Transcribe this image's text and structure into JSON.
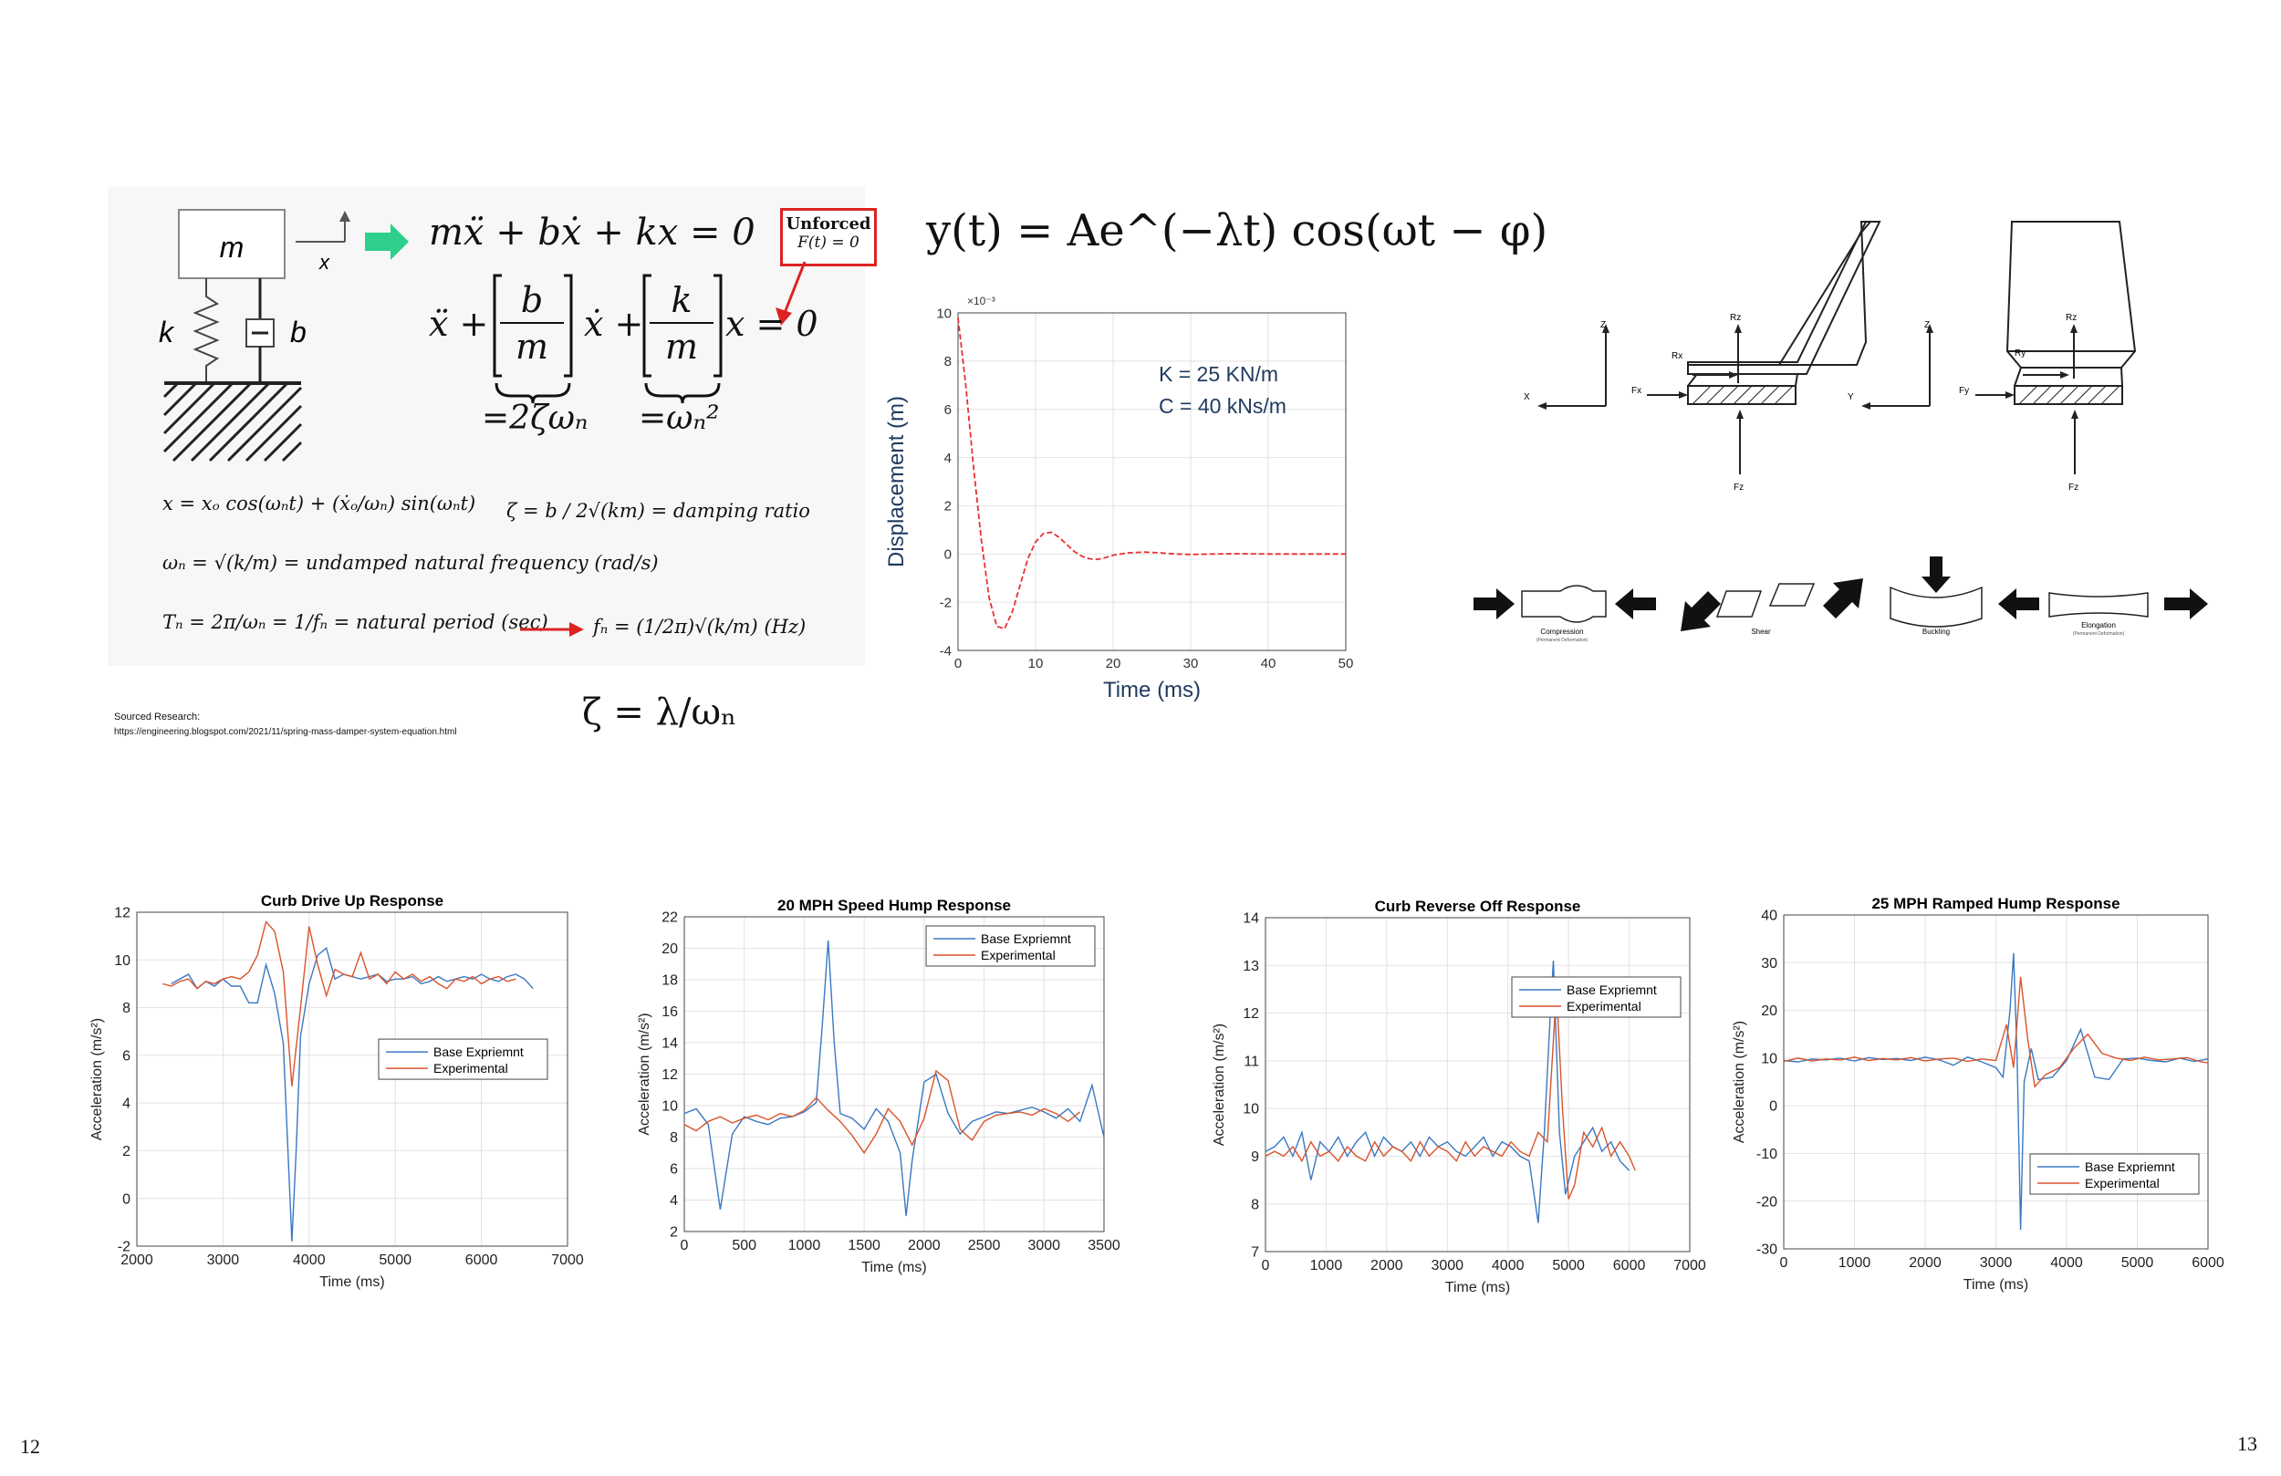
{
  "page_numbers": {
    "left": "12",
    "right": "13"
  },
  "spring_mass": {
    "mass_label": "m",
    "x_label": "x",
    "k_label": "k",
    "b_label": "b",
    "eq_main": "mẍ + bẋ + kx = 0",
    "unforced_title": "Unforced",
    "unforced_sub": "F(t) = 0",
    "eq_normalized_left": "ẍ +",
    "frac1_num": "b",
    "frac1_den": "m",
    "eq_normalized_mid": "ẋ +",
    "frac2_num": "k",
    "frac2_den": "m",
    "eq_normalized_right": "x = 0",
    "brace1": "=2ζωₙ",
    "brace2": "=ωₙ²",
    "sol_x": "x = xₒ cos(ωₙt) + (ẋₒ/ωₙ) sin(ωₙt)",
    "zeta_def": "ζ = b / 2√(km) = damping ratio",
    "omega_def": "ωₙ = √(k/m) = undamped natural frequency (rad/s)",
    "period_def": "Tₙ = 2π/ωₙ = 1/fₙ = natural period (sec)",
    "freq_def": "fₙ = (1/2π)√(k/m)  (Hz)",
    "sourced_label": "Sourced Research:",
    "sourced_url": "https://engineering.blogspot.com/2021/11/spring-mass-damper-system-equation.html",
    "zeta_lambda": "ζ = λ/ωₙ"
  },
  "decay_eq": "y(t) = Ae^(−λt) cos(ωt − φ)",
  "decay_chart": {
    "chart_data": {
      "type": "line",
      "title": "",
      "xlabel": "Time (ms)",
      "ylabel": "Displacement (m)",
      "exponent_label": "×10⁻³",
      "xlim": [
        0,
        50
      ],
      "ylim": [
        -4,
        10
      ],
      "xticks": [
        "0",
        "10",
        "20",
        "30",
        "40",
        "50"
      ],
      "yticks": [
        "-4",
        "-2",
        "0",
        "2",
        "4",
        "6",
        "8",
        "10"
      ],
      "annotations": [
        "K = 25 KN/m",
        "C = 40 kNs/m"
      ],
      "color": "#e8312f",
      "x": [
        0,
        1,
        2,
        3,
        4,
        5,
        6,
        7,
        8,
        9,
        10,
        11,
        12,
        13,
        14,
        15,
        16,
        17,
        18,
        19,
        20,
        22,
        24,
        26,
        28,
        30,
        33,
        36,
        40,
        45,
        50
      ],
      "y": [
        9.8,
        7.0,
        3.6,
        0.6,
        -1.8,
        -3.0,
        -3.1,
        -2.4,
        -1.3,
        -0.2,
        0.5,
        0.85,
        0.9,
        0.7,
        0.4,
        0.1,
        -0.1,
        -0.2,
        -0.22,
        -0.15,
        -0.05,
        0.05,
        0.08,
        0.05,
        0.0,
        -0.02,
        0.0,
        0.01,
        0.0,
        0.0,
        0.0
      ]
    }
  },
  "force_diagrams": {
    "seat1": {
      "z": "Z",
      "x": "X",
      "rz": "Rz",
      "rx": "Rx",
      "fx": "Fx",
      "fz": "Fz"
    },
    "seat2": {
      "z": "Z",
      "y": "Y",
      "rz": "Rz",
      "ry": "Ry",
      "fy": "Fy",
      "fz": "Fz"
    },
    "deformations": {
      "compression": "Compression",
      "compression_sub": "(Permanent Deformation)",
      "shear": "Shear",
      "buckling": "Buckling",
      "elongation": "Elongation",
      "elongation_sub": "(Permanent Deformation)"
    }
  },
  "response_charts": [
    {
      "chart_data": {
        "type": "line",
        "title": "Curb Drive Up Response",
        "xlabel": "Time (ms)",
        "ylabel": "Acceleration (m/s²)",
        "xlim": [
          2000,
          7000
        ],
        "ylim": [
          -2,
          12
        ],
        "xticks": [
          "2000",
          "3000",
          "4000",
          "5000",
          "6000",
          "7000"
        ],
        "yticks": [
          "-2",
          "0",
          "2",
          "4",
          "6",
          "8",
          "10",
          "12"
        ],
        "legend": "mid-right",
        "series": [
          {
            "name": "Base Expriemnt",
            "color": "#3a78c2",
            "x": [
              2400,
              2600,
              2700,
              2800,
              2900,
              3000,
              3100,
              3200,
              3300,
              3400,
              3500,
              3600,
              3700,
              3800,
              3850,
              3900,
              4000,
              4100,
              4200,
              4300,
              4400,
              4500,
              4600,
              4700,
              4800,
              4900,
              5000,
              5100,
              5200,
              5300,
              5400,
              5500,
              5600,
              5700,
              5800,
              5900,
              6000,
              6100,
              6200,
              6300,
              6400,
              6500,
              6600
            ],
            "y": [
              9.0,
              9.4,
              8.8,
              9.1,
              8.9,
              9.2,
              8.9,
              8.9,
              8.2,
              8.2,
              9.8,
              8.6,
              6.5,
              -1.8,
              2.0,
              6.8,
              9.0,
              10.2,
              10.5,
              9.2,
              9.4,
              9.3,
              9.2,
              9.3,
              9.4,
              9.1,
              9.2,
              9.2,
              9.3,
              9.0,
              9.1,
              9.3,
              9.1,
              9.2,
              9.3,
              9.2,
              9.4,
              9.2,
              9.1,
              9.3,
              9.4,
              9.2,
              8.8
            ]
          },
          {
            "name": "Experimental",
            "color": "#d9542b",
            "x": [
              2300,
              2400,
              2500,
              2600,
              2700,
              2800,
              2900,
              3000,
              3100,
              3200,
              3300,
              3400,
              3500,
              3600,
              3700,
              3800,
              3900,
              4000,
              4100,
              4200,
              4300,
              4400,
              4500,
              4600,
              4700,
              4800,
              4900,
              5000,
              5100,
              5200,
              5300,
              5400,
              5500,
              5600,
              5700,
              5800,
              5900,
              6000,
              6100,
              6200,
              6300,
              6400
            ],
            "y": [
              9.0,
              8.9,
              9.1,
              9.2,
              8.8,
              9.1,
              9.0,
              9.2,
              9.3,
              9.2,
              9.5,
              10.2,
              11.6,
              11.2,
              9.5,
              4.7,
              8.0,
              11.4,
              9.8,
              8.5,
              9.6,
              9.4,
              9.3,
              10.3,
              9.2,
              9.4,
              9.0,
              9.5,
              9.2,
              9.4,
              9.1,
              9.3,
              9.0,
              8.8,
              9.2,
              9.1,
              9.3,
              9.0,
              9.2,
              9.3,
              9.1,
              9.2
            ]
          }
        ]
      }
    },
    {
      "chart_data": {
        "type": "line",
        "title": "20 MPH Speed Hump Response",
        "xlabel": "Time (ms)",
        "ylabel": "Acceleration (m/s²)",
        "xlim": [
          0,
          3500
        ],
        "ylim": [
          2,
          22
        ],
        "xticks": [
          "0",
          "500",
          "1000",
          "1500",
          "2000",
          "2500",
          "3000",
          "3500"
        ],
        "yticks": [
          "2",
          "4",
          "6",
          "8",
          "10",
          "12",
          "14",
          "16",
          "18",
          "20",
          "22"
        ],
        "legend": "top-right",
        "series": [
          {
            "name": "Base Expriemnt",
            "color": "#3a78c2",
            "x": [
              0,
              100,
              200,
              300,
              400,
              500,
              600,
              700,
              800,
              900,
              1000,
              1100,
              1150,
              1200,
              1250,
              1300,
              1400,
              1500,
              1600,
              1700,
              1800,
              1850,
              1900,
              2000,
              2100,
              2200,
              2300,
              2400,
              2500,
              2600,
              2700,
              2800,
              2900,
              3000,
              3100,
              3200,
              3300,
              3400,
              3500
            ],
            "y": [
              9.5,
              9.8,
              8.8,
              3.4,
              8.2,
              9.3,
              9.0,
              8.8,
              9.2,
              9.3,
              9.6,
              10.2,
              15.0,
              20.5,
              14.0,
              9.5,
              9.2,
              8.5,
              9.8,
              9.0,
              7.0,
              3.0,
              6.5,
              11.5,
              12.0,
              9.5,
              8.2,
              9.0,
              9.3,
              9.6,
              9.5,
              9.7,
              9.9,
              9.6,
              9.2,
              9.8,
              9.0,
              11.3,
              8.0
            ]
          },
          {
            "name": "Experimental",
            "color": "#d9542b",
            "x": [
              0,
              100,
              200,
              300,
              400,
              500,
              600,
              700,
              800,
              900,
              1000,
              1100,
              1200,
              1300,
              1400,
              1500,
              1600,
              1700,
              1800,
              1900,
              2000,
              2100,
              2200,
              2300,
              2400,
              2500,
              2600,
              2700,
              2800,
              2900,
              3000,
              3100,
              3200,
              3300
            ],
            "y": [
              8.8,
              8.4,
              9.0,
              9.3,
              8.9,
              9.2,
              9.4,
              9.1,
              9.5,
              9.3,
              9.7,
              10.5,
              9.7,
              9.0,
              8.1,
              7.0,
              8.2,
              9.8,
              9.0,
              7.5,
              9.2,
              12.2,
              11.6,
              8.5,
              7.8,
              9.0,
              9.4,
              9.5,
              9.6,
              9.4,
              9.8,
              9.5,
              9.0,
              9.6
            ]
          }
        ]
      }
    },
    {
      "chart_data": {
        "type": "line",
        "title": "Curb Reverse Off Response",
        "xlabel": "Time (ms)",
        "ylabel": "Acceleration (m/s²)",
        "xlim": [
          0,
          7000
        ],
        "ylim": [
          7,
          14
        ],
        "xticks": [
          "0",
          "1000",
          "2000",
          "3000",
          "4000",
          "5000",
          "6000",
          "7000"
        ],
        "yticks": [
          "7",
          "8",
          "9",
          "10",
          "11",
          "12",
          "13",
          "14"
        ],
        "legend": "top-right",
        "series": [
          {
            "name": "Base Expriemnt",
            "color": "#3a78c2",
            "x": [
              0,
              150,
              300,
              450,
              600,
              750,
              900,
              1050,
              1200,
              1350,
              1500,
              1650,
              1800,
              1950,
              2100,
              2250,
              2400,
              2550,
              2700,
              2850,
              3000,
              3150,
              3300,
              3450,
              3600,
              3750,
              3900,
              4050,
              4200,
              4350,
              4500,
              4600,
              4700,
              4750,
              4850,
              4950,
              5100,
              5250,
              5400,
              5550,
              5700,
              5850,
              6000
            ],
            "y": [
              9.1,
              9.2,
              9.4,
              9.0,
              9.5,
              8.5,
              9.3,
              9.1,
              9.4,
              9.0,
              9.3,
              9.5,
              9.0,
              9.4,
              9.2,
              9.1,
              9.3,
              9.0,
              9.4,
              9.2,
              9.3,
              9.1,
              9.0,
              9.2,
              9.4,
              9.0,
              9.3,
              9.2,
              9.0,
              8.9,
              7.6,
              9.5,
              12.0,
              13.1,
              9.5,
              8.2,
              9.0,
              9.3,
              9.6,
              9.1,
              9.3,
              8.9,
              8.7
            ]
          },
          {
            "name": "Experimental",
            "color": "#d9542b",
            "x": [
              0,
              150,
              300,
              450,
              600,
              750,
              900,
              1050,
              1200,
              1350,
              1500,
              1650,
              1800,
              1950,
              2100,
              2250,
              2400,
              2550,
              2700,
              2850,
              3000,
              3150,
              3300,
              3450,
              3600,
              3750,
              3900,
              4050,
              4200,
              4350,
              4500,
              4650,
              4800,
              4900,
              5000,
              5100,
              5250,
              5400,
              5550,
              5700,
              5850,
              6000,
              6100
            ],
            "y": [
              9.0,
              9.1,
              9.0,
              9.2,
              8.9,
              9.3,
              9.0,
              9.1,
              8.9,
              9.2,
              9.0,
              8.9,
              9.3,
              9.0,
              9.2,
              9.1,
              8.9,
              9.3,
              9.0,
              9.2,
              9.1,
              8.9,
              9.3,
              9.0,
              9.2,
              9.1,
              9.0,
              9.3,
              9.1,
              9.0,
              9.5,
              9.3,
              12.5,
              10.0,
              8.1,
              8.4,
              9.5,
              9.2,
              9.6,
              9.0,
              9.3,
              9.0,
              8.7
            ]
          }
        ]
      }
    },
    {
      "chart_data": {
        "type": "line",
        "title": "25 MPH Ramped Hump Response",
        "xlabel": "Time (ms)",
        "ylabel": "Acceleration (m/s²)",
        "xlim": [
          0,
          6000
        ],
        "ylim": [
          -30,
          40
        ],
        "xticks": [
          "0",
          "1000",
          "2000",
          "3000",
          "4000",
          "5000",
          "6000"
        ],
        "yticks": [
          "-30",
          "-20",
          "-10",
          "0",
          "10",
          "20",
          "30",
          "40"
        ],
        "legend": "bottom-right",
        "series": [
          {
            "name": "Base Expriemnt",
            "color": "#3a78c2",
            "x": [
              0,
              200,
              400,
              600,
              800,
              1000,
              1200,
              1400,
              1600,
              1800,
              2000,
              2200,
              2400,
              2600,
              2800,
              3000,
              3100,
              3200,
              3250,
              3300,
              3350,
              3400,
              3500,
              3600,
              3800,
              4000,
              4200,
              4400,
              4600,
              4800,
              5000,
              5200,
              5400,
              5600,
              5800,
              6000
            ],
            "y": [
              9.5,
              9.2,
              9.8,
              9.6,
              10.0,
              9.4,
              10.1,
              9.7,
              9.9,
              9.5,
              10.2,
              9.6,
              8.5,
              10.2,
              9.2,
              8.0,
              6.0,
              20.0,
              32.0,
              10.0,
              -26.0,
              5.0,
              12.0,
              5.5,
              6.0,
              9.5,
              16.0,
              6.0,
              5.5,
              9.8,
              10.0,
              9.5,
              9.2,
              10.0,
              9.3,
              9.8
            ]
          },
          {
            "name": "Experimental",
            "color": "#d9542b",
            "x": [
              0,
              200,
              400,
              600,
              800,
              1000,
              1200,
              1400,
              1600,
              1800,
              2000,
              2200,
              2400,
              2600,
              2800,
              3000,
              3150,
              3250,
              3350,
              3450,
              3550,
              3700,
              3900,
              4100,
              4300,
              4500,
              4700,
              4900,
              5100,
              5300,
              5500,
              5700,
              5900,
              6000
            ],
            "y": [
              9.3,
              10.0,
              9.4,
              9.8,
              9.6,
              10.2,
              9.5,
              9.9,
              9.6,
              10.1,
              9.4,
              9.8,
              10.0,
              9.3,
              9.8,
              9.5,
              17.0,
              8.0,
              27.0,
              14.0,
              4.0,
              6.5,
              8.0,
              12.0,
              15.0,
              11.0,
              10.0,
              9.5,
              10.2,
              9.6,
              9.8,
              10.1,
              9.2,
              9.0
            ]
          }
        ]
      }
    }
  ]
}
